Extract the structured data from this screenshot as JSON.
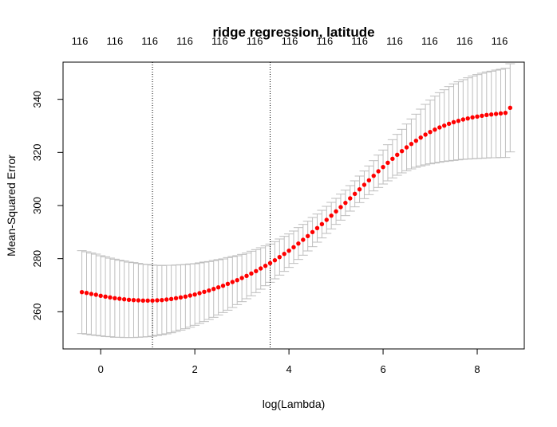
{
  "chart_data": {
    "type": "scatter",
    "title": "ridge regression, latitude",
    "xlabel": "log(Lambda)",
    "ylabel": "Mean-Squared Error",
    "xlim": [
      -0.8,
      9.0
    ],
    "ylim": [
      246,
      354
    ],
    "x_ticks": [
      0,
      2,
      4,
      6,
      8
    ],
    "y_ticks": [
      260,
      280,
      300,
      320,
      340
    ],
    "top_axis_label": "116",
    "top_axis_count": 13,
    "vlines": [
      1.1,
      3.6
    ],
    "point_color": "#ff0000",
    "errorbar_color": "#bebebe",
    "grid": false,
    "x": [
      -0.4,
      -0.3,
      -0.2,
      -0.1,
      0.0,
      0.1,
      0.2,
      0.3,
      0.4,
      0.5,
      0.6,
      0.7,
      0.8,
      0.9,
      1.0,
      1.1,
      1.2,
      1.3,
      1.4,
      1.5,
      1.6,
      1.7,
      1.8,
      1.9,
      2.0,
      2.1,
      2.2,
      2.3,
      2.4,
      2.5,
      2.6,
      2.7,
      2.8,
      2.9,
      3.0,
      3.1,
      3.2,
      3.3,
      3.4,
      3.5,
      3.6,
      3.7,
      3.8,
      3.9,
      4.0,
      4.1,
      4.2,
      4.3,
      4.4,
      4.5,
      4.6,
      4.7,
      4.8,
      4.9,
      5.0,
      5.1,
      5.2,
      5.3,
      5.4,
      5.5,
      5.6,
      5.7,
      5.8,
      5.9,
      6.0,
      6.1,
      6.2,
      6.3,
      6.4,
      6.5,
      6.6,
      6.7,
      6.8,
      6.9,
      7.0,
      7.1,
      7.2,
      7.3,
      7.4,
      7.5,
      7.6,
      7.7,
      7.8,
      7.9,
      8.0,
      8.1,
      8.2,
      8.3,
      8.4,
      8.5,
      8.6,
      8.7
    ],
    "y": [
      267.4,
      267.1,
      266.7,
      266.4,
      266.0,
      265.7,
      265.4,
      265.1,
      264.9,
      264.7,
      264.5,
      264.4,
      264.3,
      264.2,
      264.2,
      264.2,
      264.3,
      264.4,
      264.6,
      264.8,
      265.1,
      265.4,
      265.7,
      266.1,
      266.5,
      267.0,
      267.5,
      268.0,
      268.6,
      269.2,
      269.8,
      270.5,
      271.2,
      271.9,
      272.7,
      273.5,
      274.4,
      275.3,
      276.3,
      277.3,
      278.3,
      279.4,
      280.6,
      281.8,
      283.0,
      284.3,
      285.7,
      287.1,
      288.5,
      290.0,
      291.5,
      293.0,
      294.6,
      296.2,
      297.8,
      299.4,
      301.0,
      302.7,
      304.4,
      306.1,
      307.8,
      309.5,
      311.2,
      312.9,
      314.5,
      316.1,
      317.6,
      319.1,
      320.5,
      321.9,
      323.2,
      324.4,
      325.6,
      326.7,
      327.7,
      328.6,
      329.4,
      330.1,
      330.8,
      331.4,
      331.9,
      332.4,
      332.8,
      333.2,
      333.5,
      333.8,
      334.1,
      334.3,
      334.5,
      334.7,
      334.9,
      336.8
    ],
    "lower": [
      251.8,
      251.6,
      251.3,
      251.1,
      250.9,
      250.7,
      250.6,
      250.4,
      250.4,
      250.3,
      250.3,
      250.3,
      250.4,
      250.5,
      250.6,
      250.8,
      251.1,
      251.4,
      251.7,
      252.1,
      252.6,
      253.1,
      253.6,
      254.2,
      254.9,
      255.6,
      256.3,
      257.1,
      257.9,
      258.8,
      259.7,
      260.6,
      261.6,
      262.7,
      263.8,
      264.9,
      266.0,
      267.2,
      268.5,
      269.8,
      271.1,
      272.4,
      273.8,
      275.2,
      276.7,
      278.2,
      279.7,
      281.3,
      282.9,
      284.5,
      286.2,
      287.8,
      289.5,
      291.2,
      292.9,
      294.5,
      296.2,
      297.9,
      299.5,
      301.1,
      302.6,
      304.1,
      305.5,
      306.8,
      308.1,
      309.3,
      310.4,
      311.4,
      312.3,
      313.1,
      313.8,
      314.4,
      314.9,
      315.3,
      315.7,
      316.0,
      316.3,
      316.6,
      316.8,
      317.0,
      317.2,
      317.4,
      317.5,
      317.6,
      317.7,
      317.8,
      317.9,
      318.0,
      318.0,
      318.1,
      318.1,
      320.2
    ],
    "upper": [
      283.0,
      282.6,
      282.1,
      281.7,
      281.1,
      280.7,
      280.2,
      279.8,
      279.4,
      279.1,
      278.7,
      278.5,
      278.2,
      277.9,
      277.8,
      277.6,
      277.5,
      277.4,
      277.5,
      277.5,
      277.6,
      277.7,
      277.8,
      278.0,
      278.1,
      278.4,
      278.7,
      278.9,
      279.3,
      279.6,
      279.9,
      280.4,
      280.8,
      281.1,
      281.6,
      282.1,
      282.8,
      283.4,
      284.1,
      284.8,
      285.5,
      286.4,
      287.4,
      288.4,
      289.3,
      290.4,
      291.7,
      292.9,
      294.1,
      295.5,
      296.8,
      298.2,
      299.7,
      301.2,
      302.7,
      304.3,
      305.8,
      307.5,
      309.3,
      311.1,
      313.0,
      314.9,
      316.9,
      319.0,
      320.9,
      322.9,
      324.8,
      326.8,
      328.7,
      330.7,
      332.6,
      334.4,
      336.3,
      338.1,
      339.7,
      341.2,
      342.5,
      343.6,
      344.8,
      345.8,
      346.6,
      347.4,
      348.1,
      348.8,
      349.3,
      349.8,
      350.3,
      350.6,
      351.0,
      351.3,
      351.7,
      353.4
    ]
  }
}
